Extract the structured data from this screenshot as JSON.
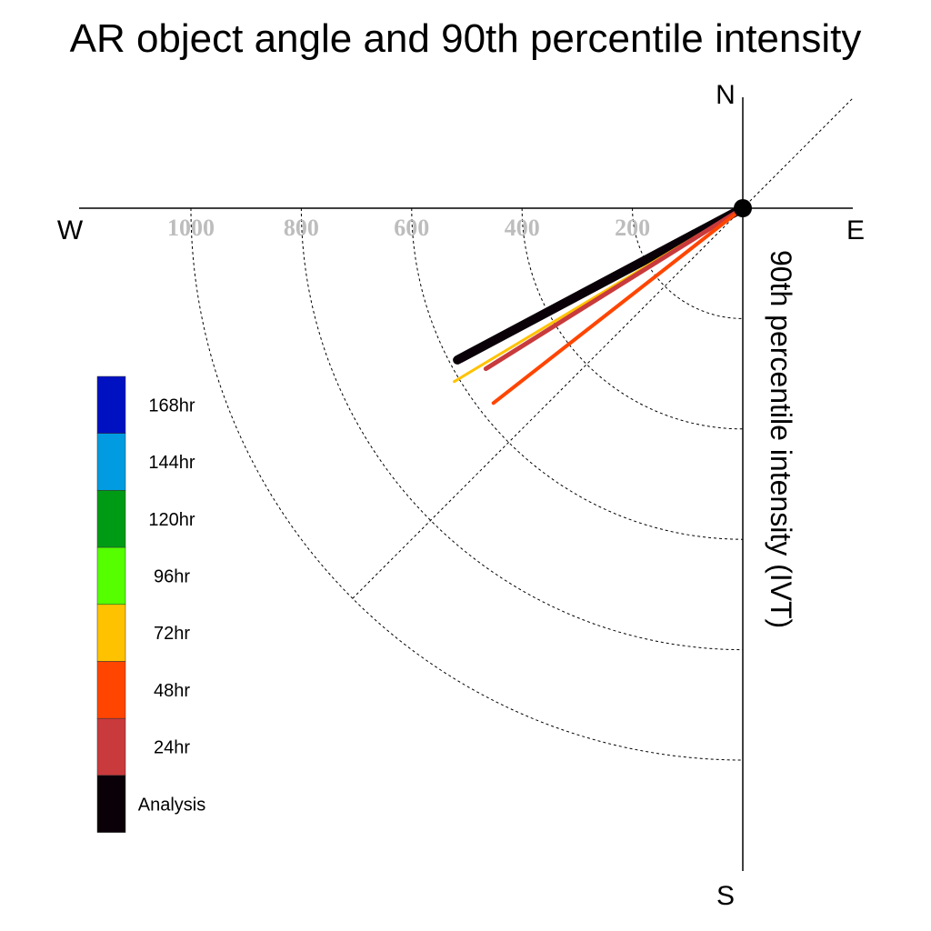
{
  "chart_data": {
    "type": "polar-vector",
    "title": "AR object angle and 90th percentile intensity",
    "axis_label": "90th percentile intensity (IVT)",
    "compass": {
      "north": "N",
      "south": "S",
      "east": "E",
      "west": "W"
    },
    "radial_ticks": [
      200,
      400,
      600,
      800,
      1000
    ],
    "radial_max": 1000,
    "reference_angle_deg": 45,
    "series": [
      {
        "name": "Analysis",
        "intensity": 480,
        "angle_deg": 62,
        "color": "#0a0008"
      },
      {
        "name": "72hr",
        "intensity": 500,
        "angle_deg": 59,
        "color": "#ffc200"
      },
      {
        "name": "24hr",
        "intensity": 450,
        "angle_deg": 58,
        "color": "#c93a3c"
      },
      {
        "name": "48hr",
        "intensity": 470,
        "angle_deg": 52,
        "color": "#ff4500"
      }
    ],
    "legend": [
      {
        "label": "168hr",
        "color": "#0011c2"
      },
      {
        "label": "144hr",
        "color": "#009be0"
      },
      {
        "label": "120hr",
        "color": "#009b15"
      },
      {
        "label": "96hr",
        "color": "#55ff00"
      },
      {
        "label": "72hr",
        "color": "#ffc200"
      },
      {
        "label": "48hr",
        "color": "#ff4500"
      },
      {
        "label": "24hr",
        "color": "#c93a3c"
      },
      {
        "label": "Analysis",
        "color": "#0a0008"
      }
    ]
  }
}
